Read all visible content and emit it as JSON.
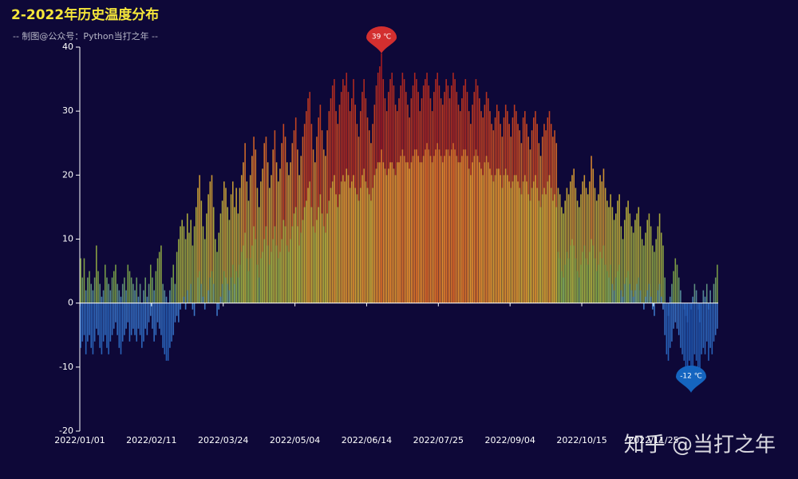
{
  "chart_data": {
    "type": "bar",
    "title": "2-2022年历史温度分布",
    "subtitle": "-- 制图@公众号：Python当打之年 --",
    "watermark": "知乎 @当打之年",
    "ylim": [
      -20,
      40
    ],
    "yticks": [
      -20,
      -10,
      0,
      10,
      20,
      30,
      40
    ],
    "categories": [
      "2022/01/01",
      null,
      null,
      null,
      null,
      null,
      null,
      null,
      null,
      null,
      null,
      null,
      null,
      null,
      null,
      null,
      null,
      null,
      null,
      null,
      null,
      null,
      null,
      null,
      null,
      null,
      null,
      null,
      null,
      null,
      null,
      null,
      null,
      null,
      null,
      null,
      null,
      null,
      null,
      null,
      null,
      "2022/02/11",
      null,
      null,
      null,
      null,
      null,
      null,
      null,
      null,
      null,
      null,
      null,
      null,
      null,
      null,
      null,
      null,
      null,
      null,
      null,
      null,
      null,
      null,
      null,
      null,
      null,
      null,
      null,
      null,
      null,
      null,
      null,
      null,
      null,
      null,
      null,
      null,
      null,
      null,
      null,
      null,
      "2022/03/24",
      null,
      null,
      null,
      null,
      null,
      null,
      null,
      null,
      null,
      null,
      null,
      null,
      null,
      null,
      null,
      null,
      null,
      null,
      null,
      null,
      null,
      null,
      null,
      null,
      null,
      null,
      null,
      null,
      null,
      null,
      null,
      null,
      null,
      null,
      null,
      null,
      null,
      null,
      null,
      null,
      "2022/05/04",
      null,
      null,
      null,
      null,
      null,
      null,
      null,
      null,
      null,
      null,
      null,
      null,
      null,
      null,
      null,
      null,
      null,
      null,
      null,
      null,
      null,
      null,
      null,
      null,
      null,
      null,
      null,
      null,
      null,
      null,
      null,
      null,
      null,
      null,
      null,
      null,
      null,
      null,
      null,
      null,
      "2022/06/14",
      null,
      null,
      null,
      null,
      null,
      null,
      null,
      null,
      null,
      null,
      null,
      null,
      null,
      null,
      null,
      null,
      null,
      null,
      null,
      null,
      null,
      null,
      null,
      null,
      null,
      null,
      null,
      null,
      null,
      null,
      null,
      null,
      null,
      null,
      null,
      null,
      null,
      null,
      null,
      null,
      "2022/07/25",
      null,
      null,
      null,
      null,
      null,
      null,
      null,
      null,
      null,
      null,
      null,
      null,
      null,
      null,
      null,
      null,
      null,
      null,
      null,
      null,
      null,
      null,
      null,
      null,
      null,
      null,
      null,
      null,
      null,
      null,
      null,
      null,
      null,
      null,
      null,
      null,
      null,
      null,
      null,
      null,
      "2022/09/04",
      null,
      null,
      null,
      null,
      null,
      null,
      null,
      null,
      null,
      null,
      null,
      null,
      null,
      null,
      null,
      null,
      null,
      null,
      null,
      null,
      null,
      null,
      null,
      null,
      null,
      null,
      null,
      null,
      null,
      null,
      null,
      null,
      null,
      null,
      null,
      null,
      null,
      null,
      null,
      null,
      "2022/10/15",
      null,
      null,
      null,
      null,
      null,
      null,
      null,
      null,
      null,
      null,
      null,
      null,
      null,
      null,
      null,
      null,
      null,
      null,
      null,
      null,
      null,
      null,
      null,
      null,
      null,
      null,
      null,
      null,
      null,
      null,
      null,
      null,
      null,
      null,
      null,
      null,
      null,
      null,
      null,
      null,
      "2022/11/25",
      null,
      null,
      null,
      null,
      null,
      null,
      null,
      null,
      null,
      null,
      null,
      null,
      null,
      null,
      null,
      null,
      null,
      null,
      null,
      null,
      null,
      null,
      null,
      null,
      null,
      null,
      null,
      null,
      null,
      null,
      null,
      null,
      null,
      null,
      null,
      null
    ],
    "series": [
      {
        "values": [
          7,
          4,
          7,
          2,
          4,
          5,
          3,
          2,
          4,
          9,
          5,
          3,
          1,
          2,
          6,
          4,
          3,
          2,
          4,
          5,
          6,
          3,
          2,
          1,
          3,
          4,
          2,
          6,
          5,
          4,
          3,
          2,
          4,
          1,
          3,
          0,
          2,
          4,
          1,
          3,
          6,
          4,
          2,
          5,
          7,
          8,
          9,
          3,
          2,
          1,
          0,
          2,
          4,
          6,
          3,
          8,
          10,
          12,
          13,
          12,
          10,
          14,
          11,
          13,
          9,
          12,
          15,
          18,
          20,
          16,
          12,
          10,
          14,
          17,
          19,
          20,
          15,
          10,
          8,
          11,
          14,
          16,
          19,
          18,
          15,
          13,
          17,
          19,
          15,
          18,
          14,
          18,
          20,
          22,
          25,
          19,
          16,
          20,
          23,
          26,
          24,
          18,
          15,
          19,
          21,
          25,
          26,
          22,
          18,
          20,
          24,
          27,
          22,
          19,
          21,
          25,
          28,
          26,
          22,
          20,
          22,
          25,
          27,
          29,
          24,
          20,
          23,
          26,
          28,
          30,
          32,
          33,
          28,
          24,
          22,
          26,
          29,
          31,
          27,
          24,
          23,
          27,
          30,
          32,
          34,
          35,
          30,
          28,
          31,
          33,
          35,
          34,
          36,
          33,
          30,
          32,
          35,
          31,
          28,
          26,
          30,
          33,
          35,
          32,
          29,
          27,
          25,
          28,
          31,
          34,
          36,
          37,
          39,
          35,
          32,
          30,
          33,
          35,
          36,
          34,
          31,
          30,
          32,
          34,
          36,
          35,
          33,
          31,
          29,
          32,
          34,
          36,
          35,
          33,
          30,
          32,
          34,
          35,
          36,
          34,
          32,
          30,
          33,
          35,
          36,
          34,
          32,
          31,
          33,
          35,
          34,
          32,
          34,
          36,
          35,
          33,
          31,
          30,
          32,
          34,
          35,
          33,
          30,
          28,
          31,
          33,
          35,
          34,
          32,
          30,
          29,
          31,
          33,
          32,
          30,
          28,
          27,
          29,
          31,
          30,
          28,
          26,
          29,
          31,
          30,
          28,
          26,
          29,
          31,
          30,
          28,
          27,
          25,
          29,
          30,
          28,
          26,
          24,
          27,
          29,
          30,
          28,
          25,
          23,
          26,
          28,
          27,
          29,
          30,
          28,
          26,
          27,
          25,
          18,
          17,
          15,
          14,
          16,
          18,
          17,
          19,
          20,
          21,
          18,
          16,
          15,
          17,
          19,
          20,
          18,
          17,
          19,
          23,
          21,
          18,
          16,
          17,
          20,
          19,
          21,
          18,
          16,
          15,
          17,
          15,
          13,
          14,
          16,
          17,
          12,
          10,
          13,
          15,
          16,
          14,
          12,
          11,
          13,
          14,
          15,
          12,
          10,
          9,
          11,
          13,
          14,
          12,
          9,
          8,
          10,
          12,
          14,
          11,
          9,
          4,
          0,
          -2,
          1,
          3,
          5,
          7,
          6,
          4,
          2,
          0,
          -1,
          -2,
          -3,
          0,
          -1,
          1,
          3,
          2,
          -1,
          -3,
          0,
          2,
          1,
          3,
          -1,
          2,
          0,
          3,
          4,
          6
        ]
      },
      {
        "values": [
          -7,
          -6,
          -5,
          -8,
          -6,
          -5,
          -7,
          -8,
          -6,
          -4,
          -5,
          -7,
          -8,
          -6,
          -5,
          -7,
          -8,
          -6,
          -5,
          -4,
          -3,
          -5,
          -7,
          -8,
          -6,
          -5,
          -4,
          -3,
          -6,
          -5,
          -4,
          -5,
          -6,
          -4,
          -5,
          -7,
          -6,
          -4,
          -5,
          -3,
          -2,
          -4,
          -6,
          -5,
          -3,
          -4,
          -5,
          -7,
          -8,
          -9,
          -9,
          -7,
          -6,
          -5,
          -3,
          -2,
          -3,
          -1,
          0,
          1,
          -1,
          2,
          0,
          3,
          -1,
          -2,
          0,
          4,
          5,
          3,
          1,
          -1,
          0,
          2,
          4,
          5,
          3,
          0,
          -2,
          -1,
          1,
          3,
          5,
          4,
          3,
          2,
          4,
          6,
          3,
          5,
          4,
          6,
          8,
          9,
          11,
          7,
          5,
          7,
          9,
          12,
          10,
          6,
          4,
          7,
          8,
          10,
          12,
          9,
          6,
          8,
          10,
          12,
          9,
          7,
          8,
          10,
          13,
          12,
          9,
          8,
          10,
          12,
          14,
          15,
          12,
          9,
          11,
          13,
          15,
          16,
          18,
          19,
          15,
          12,
          11,
          13,
          15,
          17,
          14,
          12,
          11,
          14,
          16,
          18,
          19,
          20,
          17,
          15,
          17,
          19,
          20,
          19,
          21,
          20,
          18,
          19,
          20,
          18,
          17,
          16,
          18,
          20,
          21,
          19,
          18,
          17,
          16,
          18,
          20,
          21,
          22,
          22,
          24,
          22,
          21,
          20,
          21,
          22,
          22,
          21,
          20,
          22,
          22,
          23,
          24,
          23,
          22,
          22,
          21,
          22,
          23,
          24,
          24,
          23,
          22,
          22,
          23,
          24,
          25,
          24,
          23,
          22,
          23,
          24,
          25,
          24,
          23,
          22,
          23,
          24,
          24,
          23,
          24,
          25,
          24,
          23,
          22,
          22,
          23,
          24,
          24,
          23,
          21,
          20,
          22,
          23,
          24,
          23,
          22,
          21,
          20,
          22,
          23,
          22,
          21,
          20,
          19,
          20,
          21,
          21,
          20,
          18,
          20,
          21,
          20,
          19,
          18,
          19,
          20,
          20,
          19,
          18,
          17,
          19,
          20,
          19,
          17,
          16,
          18,
          19,
          20,
          18,
          16,
          15,
          17,
          18,
          17,
          19,
          20,
          18,
          16,
          17,
          15,
          8,
          7,
          5,
          4,
          6,
          8,
          7,
          9,
          10,
          9,
          7,
          5,
          4,
          6,
          8,
          9,
          7,
          6,
          8,
          10,
          9,
          7,
          5,
          6,
          8,
          7,
          9,
          6,
          5,
          4,
          6,
          3,
          2,
          4,
          5,
          6,
          2,
          1,
          3,
          4,
          5,
          3,
          2,
          1,
          2,
          3,
          4,
          2,
          0,
          -1,
          1,
          2,
          3,
          1,
          -1,
          -2,
          0,
          2,
          3,
          1,
          -1,
          -5,
          -8,
          -9,
          -7,
          -6,
          -4,
          -3,
          -4,
          -5,
          -7,
          -8,
          -9,
          -10,
          -11,
          -9,
          -12,
          -10,
          -8,
          -9,
          -10,
          -11,
          -8,
          -7,
          -8,
          -6,
          -9,
          -7,
          -8,
          -6,
          -5,
          -4
        ]
      }
    ],
    "color_stops": [
      {
        "value": -12,
        "color": "#1f5fc0"
      },
      {
        "value": 0,
        "color": "#4a8ee0"
      },
      {
        "value": 5,
        "color": "#7fae4a"
      },
      {
        "value": 15,
        "color": "#c8c23a"
      },
      {
        "value": 22,
        "color": "#f0a030"
      },
      {
        "value": 28,
        "color": "#e2501e"
      },
      {
        "value": 39,
        "color": "#b71c1c"
      }
    ],
    "markers": [
      {
        "label": "39 ℃",
        "type": "max",
        "color": "#d32f2f"
      },
      {
        "label": "-12 ℃",
        "type": "min",
        "color": "#1565c0"
      }
    ]
  }
}
